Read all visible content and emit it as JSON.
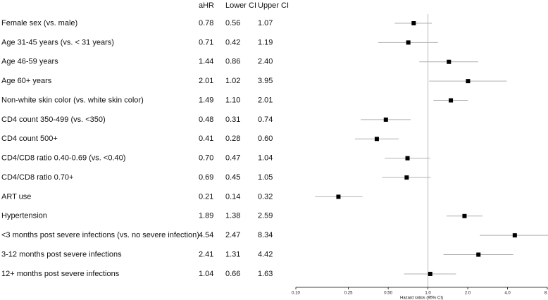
{
  "chart_data": {
    "type": "forest",
    "categories": [
      "Female sex (vs. male)",
      "Age 31-45 years (vs. < 31 years)",
      "Age 46-59 years",
      "Age 60+ years",
      "Non-white skin color (vs. white skin color)",
      "CD4 count 350-499 (vs. <350)",
      "CD4 count 500+",
      "CD4/CD8 ratio 0.40-0.69 (vs. <0.40)",
      "CD4/CD8 ratio 0.70+",
      "ART use",
      "Hypertension",
      "<3 months post severe infections (vs. no severe infection)",
      "3-12 months post severe infections",
      "12+ months post severe infections"
    ],
    "series": [
      {
        "name": "aHR",
        "color": "#000000",
        "values": [
          0.78,
          0.71,
          1.44,
          2.01,
          1.49,
          0.48,
          0.41,
          0.7,
          0.69,
          0.21,
          1.89,
          4.54,
          2.41,
          1.04
        ],
        "value_labels": [
          "0.78",
          "0.71",
          "1.44",
          "2.01",
          "1.49",
          "0.48",
          "0.41",
          "0.70",
          "0.69",
          "0.21",
          "1.89",
          "4.54",
          "2.41",
          "1.04"
        ]
      },
      {
        "name": "Lower CI",
        "color": "#b0b0b0",
        "values": [
          0.56,
          0.42,
          0.86,
          1.02,
          1.1,
          0.31,
          0.28,
          0.47,
          0.45,
          0.14,
          1.38,
          2.47,
          1.31,
          0.66
        ],
        "value_labels": [
          "0.56",
          "0.42",
          "0.86",
          "1.02",
          "1.10",
          "0.31",
          "0.28",
          "0.47",
          "0.45",
          "0.14",
          "1.38",
          "2.47",
          "1.31",
          "0.66"
        ]
      },
      {
        "name": "Upper CI",
        "color": "#b0b0b0",
        "values": [
          1.07,
          1.19,
          2.4,
          3.95,
          2.01,
          0.74,
          0.6,
          1.04,
          1.05,
          0.32,
          2.59,
          8.34,
          4.42,
          1.63
        ],
        "value_labels": [
          "1.07",
          "1.19",
          "2.40",
          "3.95",
          "2.01",
          "0.74",
          "0.60",
          "1.04",
          "1.05",
          "0.32",
          "2.59",
          "8.34",
          "4.42",
          "1.63"
        ]
      }
    ],
    "xlabel": "Hazard ratios (95% CI)",
    "log_x": true,
    "xlim": [
      0.1,
      8
    ],
    "xticks": [
      {
        "value": 0.1,
        "label": "0.10"
      },
      0.25,
      {
        "value": 0.5,
        "label": "0.50"
      },
      {
        "value": 1,
        "label": "1.0"
      },
      {
        "value": 2,
        "label": "2.0"
      },
      {
        "value": 4,
        "label": "4.0"
      },
      {
        "value": 8,
        "label": "8.0"
      }
    ],
    "reference_line": 1
  }
}
